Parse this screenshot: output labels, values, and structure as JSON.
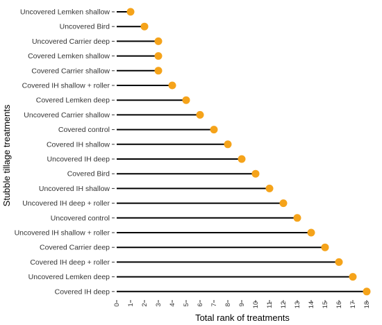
{
  "chart_data": {
    "type": "lollipop",
    "xlabel": "Total rank of treatments",
    "ylabel": "Stubble tillage treatments",
    "xlim": [
      0,
      18
    ],
    "xticks": [
      "0",
      "1",
      "2",
      "3",
      "4",
      "5",
      "6",
      "7",
      "8",
      "9",
      "10",
      "11",
      "12",
      "13",
      "14",
      "15",
      "16",
      "17",
      "18"
    ],
    "grid": false,
    "point_color": "#F5A31A",
    "stem_color": "#000000",
    "categories": [
      "Uncovered Lemken shallow",
      "Uncovered Bird",
      "Uncovered Carrier deep",
      "Covered Lemken shallow",
      "Covered Carrier shallow",
      "Covered IH shallow + roller",
      "Covered Lemken deep",
      "Uncovered Carrier shallow",
      "Covered control",
      "Covered IH shallow",
      "Uncovered IH deep",
      "Covered Bird",
      "Uncovered IH shallow",
      "Uncovered IH deep + roller",
      "Uncovered control",
      "Uncovered IH shallow + roller",
      "Covered Carrier deep",
      "Covered IH deep + roller",
      "Uncovered Lemken deep",
      "Covered IH deep"
    ],
    "values": [
      1,
      2,
      3,
      3,
      3,
      4,
      5,
      6,
      7,
      8,
      9,
      10,
      11,
      12,
      13,
      14,
      15,
      16,
      17,
      18
    ]
  }
}
